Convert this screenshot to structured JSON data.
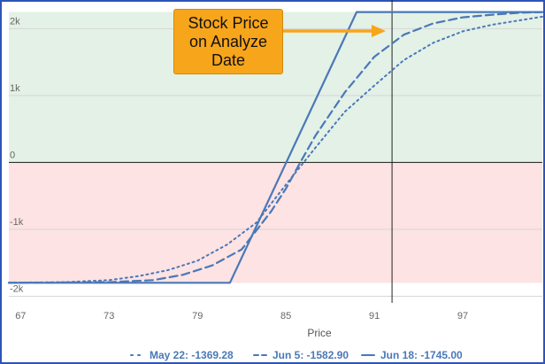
{
  "callout": {
    "text": "Stock Price\non Analyze\nDate"
  },
  "colors": {
    "profit_zone": "#e3f1e6",
    "loss_zone": "#fde3e3",
    "line": "#4a78b8",
    "callout": "#f7a51b",
    "border": "#2e54b8"
  },
  "chart_data": {
    "type": "line",
    "xlabel": "Price",
    "xlim": [
      66.2,
      102.4
    ],
    "ylim": [
      -2100,
      2350
    ],
    "x_ticks": [
      67,
      73,
      79,
      85,
      91,
      97
    ],
    "y_ticks": [
      {
        "value": 2000,
        "label": "2k"
      },
      {
        "value": 1000,
        "label": "1k"
      },
      {
        "value": 0,
        "label": "0"
      },
      {
        "value": -1000,
        "label": "-1k"
      },
      {
        "value": -2000,
        "label": "-2k"
      }
    ],
    "profit_band": [
      0,
      2250
    ],
    "loss_band": [
      -1800,
      0
    ],
    "analyze_price": 92.2,
    "series": [
      {
        "legend": {
          "date": "May 22",
          "value": "-1369.28"
        },
        "style": "dotted",
        "points": [
          [
            66.2,
            -1797
          ],
          [
            70,
            -1790
          ],
          [
            73,
            -1760
          ],
          [
            75,
            -1700
          ],
          [
            77,
            -1610
          ],
          [
            79,
            -1470
          ],
          [
            81,
            -1230
          ],
          [
            83,
            -900
          ],
          [
            85,
            -330
          ],
          [
            87,
            220
          ],
          [
            89,
            760
          ],
          [
            91,
            1150
          ],
          [
            93,
            1530
          ],
          [
            95,
            1790
          ],
          [
            97,
            1960
          ],
          [
            99,
            2060
          ],
          [
            101,
            2130
          ],
          [
            102.4,
            2180
          ]
        ]
      },
      {
        "legend": {
          "date": "Jun 5",
          "value": "-1582.90"
        },
        "style": "dashed",
        "points": [
          [
            66.2,
            -1800
          ],
          [
            73,
            -1790
          ],
          [
            76,
            -1760
          ],
          [
            78,
            -1680
          ],
          [
            80,
            -1540
          ],
          [
            82,
            -1300
          ],
          [
            84,
            -730
          ],
          [
            85,
            -390
          ],
          [
            86,
            10
          ],
          [
            87,
            400
          ],
          [
            89,
            1050
          ],
          [
            91,
            1580
          ],
          [
            93,
            1910
          ],
          [
            95,
            2080
          ],
          [
            97,
            2170
          ],
          [
            99,
            2210
          ],
          [
            101,
            2240
          ],
          [
            102.4,
            2250
          ]
        ]
      },
      {
        "legend": {
          "date": "Jun 18",
          "value": "-1745.00"
        },
        "style": "solid",
        "points": [
          [
            66.2,
            -1800
          ],
          [
            81.2,
            -1800
          ],
          [
            89.8,
            2250
          ],
          [
            102.4,
            2250
          ]
        ]
      }
    ]
  }
}
